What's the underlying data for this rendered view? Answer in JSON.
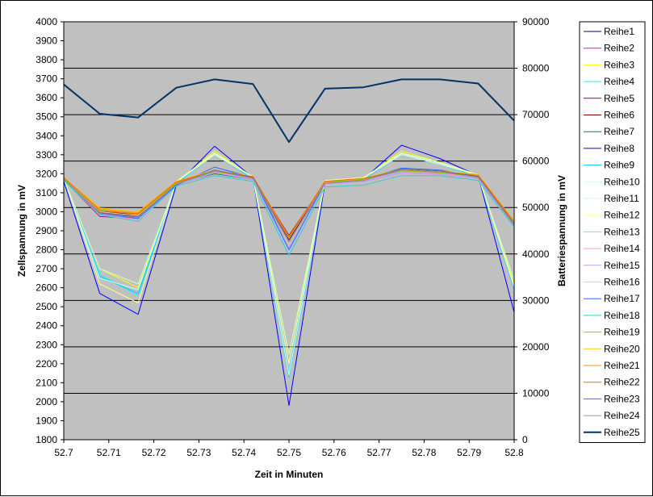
{
  "chart_data": {
    "type": "line",
    "title": "",
    "xlabel": "Zeit in Minuten",
    "ylabel": "Zellspannung in mV",
    "y2label": "Batteriespannung in mV",
    "x": [
      52.7,
      52.708,
      52.7165,
      52.725,
      52.7335,
      52.742,
      52.75,
      52.758,
      52.7665,
      52.775,
      52.7835,
      52.792,
      52.8
    ],
    "xlim": [
      52.7,
      52.8
    ],
    "xticks": [
      52.7,
      52.71,
      52.72,
      52.73,
      52.74,
      52.75,
      52.76,
      52.77,
      52.78,
      52.79,
      52.8
    ],
    "ylim": [
      1800,
      4000
    ],
    "yticks": [
      1800,
      1900,
      2000,
      2100,
      2200,
      2300,
      2400,
      2500,
      2600,
      2700,
      2800,
      2900,
      3000,
      3100,
      3200,
      3300,
      3400,
      3500,
      3600,
      3700,
      3800,
      3900,
      4000
    ],
    "y2lim": [
      0,
      90000
    ],
    "y2ticks": [
      0,
      10000,
      20000,
      30000,
      40000,
      50000,
      60000,
      70000,
      80000,
      90000
    ],
    "grid": true,
    "plot_background": "#C0C0C0",
    "legend_position": "right",
    "series": [
      {
        "name": "Reihe1",
        "color": "#000080",
        "axis": "left",
        "values": [
          3170,
          2985,
          2975,
          3140,
          3210,
          3180,
          2855,
          3150,
          3165,
          3215,
          3210,
          3185,
          2940
        ]
      },
      {
        "name": "Reihe2",
        "color": "#FF00FF",
        "axis": "left",
        "values": [
          3165,
          2990,
          2980,
          3145,
          3215,
          3175,
          2860,
          3155,
          3170,
          3210,
          3205,
          3180,
          2935
        ]
      },
      {
        "name": "Reihe3",
        "color": "#FFFF00",
        "axis": "left",
        "values": [
          3175,
          2700,
          2600,
          3150,
          3320,
          3180,
          2250,
          3160,
          3175,
          3320,
          3260,
          3190,
          2620
        ]
      },
      {
        "name": "Reihe4",
        "color": "#00FFFF",
        "axis": "left",
        "values": [
          3170,
          2670,
          2560,
          3150,
          3310,
          3175,
          2150,
          3160,
          3170,
          3310,
          3250,
          3185,
          2600
        ]
      },
      {
        "name": "Reihe5",
        "color": "#800080",
        "axis": "left",
        "values": [
          3170,
          2975,
          2965,
          3140,
          3210,
          3180,
          2840,
          3150,
          3165,
          3215,
          3205,
          3180,
          2930
        ]
      },
      {
        "name": "Reihe6",
        "color": "#800000",
        "axis": "left",
        "values": [
          3175,
          3000,
          2985,
          3150,
          3215,
          3180,
          2875,
          3155,
          3170,
          3220,
          3210,
          3190,
          2945
        ]
      },
      {
        "name": "Reihe7",
        "color": "#008080",
        "axis": "left",
        "values": [
          3165,
          2995,
          2975,
          3145,
          3200,
          3170,
          2830,
          3150,
          3160,
          3205,
          3200,
          3180,
          2935
        ]
      },
      {
        "name": "Reihe8",
        "color": "#0000FF",
        "axis": "left",
        "values": [
          3160,
          2570,
          2460,
          3140,
          3345,
          3180,
          1980,
          3150,
          3170,
          3350,
          3280,
          3190,
          2470
        ]
      },
      {
        "name": "Reihe9",
        "color": "#00CCFF",
        "axis": "left",
        "values": [
          3170,
          2660,
          2570,
          3150,
          3300,
          3175,
          2130,
          3155,
          3170,
          3300,
          3250,
          3185,
          2590
        ]
      },
      {
        "name": "Reihe10",
        "color": "#CCFFFF",
        "axis": "left",
        "values": [
          3175,
          2650,
          2590,
          3155,
          3305,
          3180,
          2140,
          3160,
          3175,
          3305,
          3255,
          3190,
          2600
        ]
      },
      {
        "name": "Reihe11",
        "color": "#CCFFCC",
        "axis": "left",
        "values": [
          3175,
          2700,
          2620,
          3155,
          3300,
          3180,
          2250,
          3160,
          3175,
          3300,
          3250,
          3190,
          2640
        ]
      },
      {
        "name": "Reihe12",
        "color": "#FFFF99",
        "axis": "left",
        "values": [
          3180,
          2620,
          2520,
          3160,
          3310,
          3185,
          2200,
          3165,
          3180,
          3310,
          3260,
          3195,
          2610
        ]
      },
      {
        "name": "Reihe13",
        "color": "#99CCFF",
        "axis": "left",
        "values": [
          3170,
          2990,
          2950,
          3145,
          3210,
          3175,
          2790,
          3150,
          3165,
          3210,
          3205,
          3180,
          2930
        ]
      },
      {
        "name": "Reihe14",
        "color": "#FF99CC",
        "axis": "left",
        "values": [
          3170,
          2980,
          2960,
          3140,
          3205,
          3175,
          2800,
          3150,
          3165,
          3205,
          3200,
          3180,
          2925
        ]
      },
      {
        "name": "Reihe15",
        "color": "#CC99FF",
        "axis": "left",
        "values": [
          3165,
          2985,
          2965,
          3140,
          3205,
          3170,
          2810,
          3145,
          3160,
          3205,
          3195,
          3175,
          2925
        ]
      },
      {
        "name": "Reihe16",
        "color": "#FFCC99",
        "axis": "left",
        "values": [
          3175,
          3000,
          2980,
          3150,
          3210,
          3180,
          2830,
          3155,
          3170,
          3215,
          3205,
          3185,
          2940
        ]
      },
      {
        "name": "Reihe17",
        "color": "#3366FF",
        "axis": "left",
        "values": [
          3170,
          2990,
          2965,
          3140,
          3235,
          3180,
          2800,
          3150,
          3170,
          3230,
          3220,
          3185,
          2930
        ]
      },
      {
        "name": "Reihe18",
        "color": "#33CCCC",
        "axis": "left",
        "values": [
          3165,
          2985,
          2950,
          3135,
          3190,
          3160,
          2770,
          3130,
          3140,
          3190,
          3190,
          3165,
          2920
        ]
      },
      {
        "name": "Reihe19",
        "color": "#99CC00",
        "axis": "left",
        "values": [
          3175,
          3010,
          2985,
          3150,
          3210,
          3180,
          2840,
          3155,
          3170,
          3215,
          3205,
          3185,
          2940
        ]
      },
      {
        "name": "Reihe20",
        "color": "#FFCC00",
        "axis": "left",
        "values": [
          3180,
          3020,
          3000,
          3160,
          3220,
          3185,
          2860,
          3160,
          3175,
          3225,
          3215,
          3195,
          2950
        ]
      },
      {
        "name": "Reihe21",
        "color": "#FF9900",
        "axis": "left",
        "values": [
          3180,
          3015,
          2995,
          3160,
          3215,
          3185,
          2870,
          3160,
          3175,
          3220,
          3210,
          3195,
          2950
        ]
      },
      {
        "name": "Reihe22",
        "color": "#FF6600",
        "axis": "left",
        "values": [
          3180,
          3005,
          2990,
          3155,
          3215,
          3185,
          2865,
          3160,
          3175,
          3220,
          3210,
          3190,
          2945
        ]
      },
      {
        "name": "Reihe23",
        "color": "#666699",
        "axis": "left",
        "values": [
          3170,
          2995,
          2975,
          3145,
          3220,
          3180,
          2845,
          3150,
          3165,
          3225,
          3215,
          3185,
          2935
        ]
      },
      {
        "name": "Reihe24",
        "color": "#969696",
        "axis": "left",
        "values": [
          3170,
          2990,
          2970,
          3145,
          3215,
          3175,
          2840,
          3150,
          3165,
          3220,
          3210,
          3180,
          2930
        ]
      },
      {
        "name": "Reihe25",
        "color": "#003366",
        "axis": "right",
        "values": [
          76500,
          70200,
          69400,
          75800,
          77600,
          76600,
          64100,
          75600,
          75900,
          77600,
          77600,
          76700,
          68700
        ]
      }
    ]
  }
}
